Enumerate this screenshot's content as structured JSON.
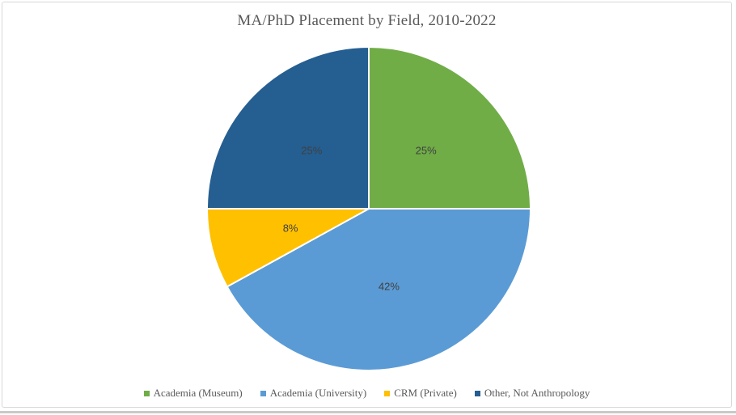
{
  "window": {
    "background": "#ffffff",
    "frame_border_color": "#d9d9d9",
    "bottom_edge_color": "#c9c9c9"
  },
  "chart_data": {
    "type": "pie",
    "title": "MA/PhD Placement by Field, 2010-2022",
    "start_angle_deg": 0,
    "direction": "clockwise",
    "legend_position": "bottom",
    "slices": [
      {
        "label": "Academia (Museum)",
        "value": 25,
        "display": "25%",
        "color": "#70AD47"
      },
      {
        "label": "Academia (University)",
        "value": 42,
        "display": "42%",
        "color": "#5B9BD5"
      },
      {
        "label": "CRM (Private)",
        "value": 8,
        "display": "8%",
        "color": "#FFC000"
      },
      {
        "label": "Other, Not Anthropology",
        "value": 25,
        "display": "25%",
        "color": "#255E91"
      }
    ],
    "slice_border_color": "#ffffff",
    "label_color": "#404040",
    "title_color": "#595959",
    "legend_text_color": "#595959"
  }
}
